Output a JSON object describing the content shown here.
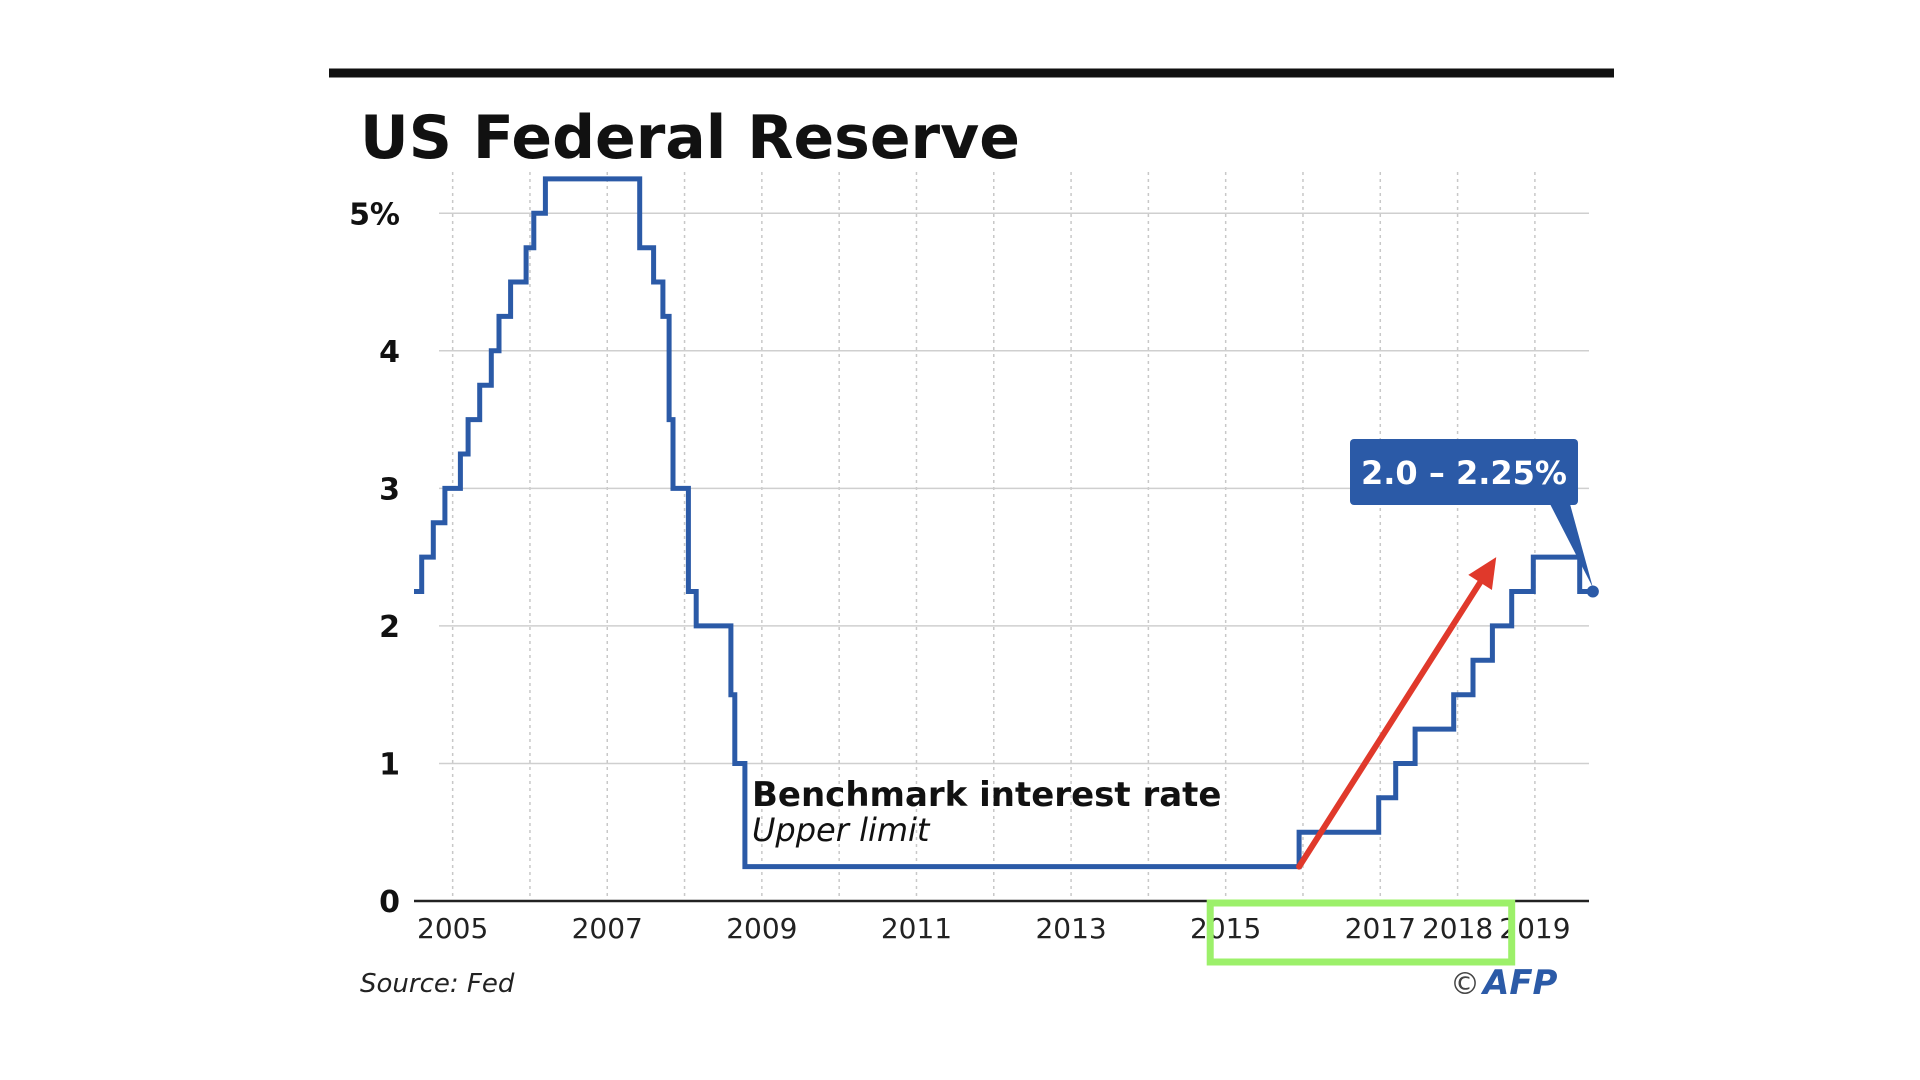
{
  "chart_data": {
    "type": "line",
    "title": "US Federal Reserve",
    "xlabel": "",
    "ylabel": "",
    "x_tick_labels": [
      "2005",
      "2007",
      "2009",
      "2011",
      "2013",
      "2015",
      "2017",
      "2018",
      "2019"
    ],
    "y_tick_labels": [
      "0",
      "1",
      "2",
      "3",
      "4",
      "5%"
    ],
    "y_ticks": [
      0,
      1,
      2,
      3,
      4,
      5
    ],
    "ylim": [
      0,
      5.3
    ],
    "xlim": [
      2004.5,
      2019.7
    ],
    "grid": true,
    "series": [
      {
        "name": "Benchmark interest rate",
        "subtitle": "Upper limit",
        "color": "#2b5aa7",
        "step": true,
        "points": [
          [
            2004.5,
            2.25
          ],
          [
            2004.6,
            2.5
          ],
          [
            2004.75,
            2.75
          ],
          [
            2004.9,
            3.0
          ],
          [
            2005.1,
            3.25
          ],
          [
            2005.2,
            3.5
          ],
          [
            2005.35,
            3.75
          ],
          [
            2005.5,
            4.0
          ],
          [
            2005.6,
            4.25
          ],
          [
            2005.75,
            4.5
          ],
          [
            2005.95,
            4.75
          ],
          [
            2006.05,
            5.0
          ],
          [
            2006.2,
            5.25
          ],
          [
            2007.42,
            4.75
          ],
          [
            2007.6,
            4.5
          ],
          [
            2007.72,
            4.25
          ],
          [
            2007.8,
            3.5
          ],
          [
            2007.85,
            3.0
          ],
          [
            2008.05,
            2.25
          ],
          [
            2008.15,
            2.0
          ],
          [
            2008.6,
            1.5
          ],
          [
            2008.65,
            1.0
          ],
          [
            2008.78,
            0.25
          ],
          [
            2015.95,
            0.5
          ],
          [
            2016.98,
            0.75
          ],
          [
            2017.2,
            1.0
          ],
          [
            2017.45,
            1.25
          ],
          [
            2017.95,
            1.5
          ],
          [
            2018.2,
            1.75
          ],
          [
            2018.45,
            2.0
          ],
          [
            2018.7,
            2.25
          ],
          [
            2018.98,
            2.5
          ],
          [
            2019.58,
            2.25
          ],
          [
            2019.75,
            2.25
          ]
        ]
      }
    ],
    "annotations": {
      "callout": "2.0 – 2.25%",
      "callout_color": "#2b5aa7",
      "arrow_color": "#e0392b",
      "arrow_from": [
        2015.95,
        0.25
      ],
      "arrow_to": [
        2018.5,
        2.5
      ],
      "highlight_color": "#9cf06a",
      "highlight_x_range": [
        2014.8,
        2018.7
      ]
    },
    "source": "Source: Fed",
    "credit_symbol": "©",
    "credit": "AFP"
  }
}
